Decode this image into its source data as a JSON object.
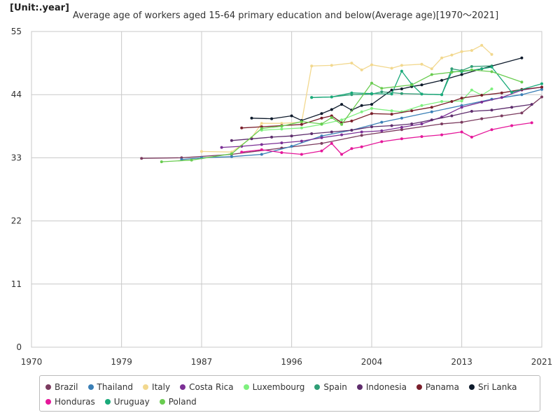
{
  "header": {
    "unit": "[Unit:.year]",
    "title": "Average age of workers aged 15-64 primary education and below(Average age)[1970～2021]"
  },
  "chart_data": {
    "type": "line",
    "title": "Average age of workers aged 15-64 primary education and below(Average age)[1970～2021]",
    "ylabel": "[Unit:.year]",
    "xlim": [
      1970,
      2021
    ],
    "ylim": [
      0,
      55
    ],
    "x_ticks": [
      "1970",
      "1979",
      "1987",
      "1996",
      "2004",
      "2013",
      "2021"
    ],
    "y_ticks": [
      "0",
      "11",
      "22",
      "33",
      "44",
      "55"
    ],
    "grid": true,
    "legend_position": "bottom",
    "series": [
      {
        "name": "Brazil",
        "color": "#7b3b5f",
        "points": [
          [
            1981,
            32.9
          ],
          [
            1985,
            33.0
          ],
          [
            1990,
            33.6
          ],
          [
            1995,
            34.7
          ],
          [
            1999,
            35.5
          ],
          [
            2003,
            36.9
          ],
          [
            2007,
            37.9
          ],
          [
            2011,
            38.9
          ],
          [
            2013,
            39.2
          ],
          [
            2015,
            39.8
          ],
          [
            2017,
            40.3
          ],
          [
            2019,
            40.8
          ],
          [
            2021,
            43.6
          ]
        ]
      },
      {
        "name": "Thailand",
        "color": "#3a7fb6",
        "points": [
          [
            1985,
            32.7
          ],
          [
            1987,
            33.0
          ],
          [
            1990,
            33.2
          ],
          [
            1993,
            33.6
          ],
          [
            1996,
            35.0
          ],
          [
            1999,
            36.8
          ],
          [
            2002,
            37.8
          ],
          [
            2005,
            39.2
          ],
          [
            2007,
            39.9
          ],
          [
            2010,
            41.0
          ],
          [
            2013,
            42.1
          ],
          [
            2016,
            43.2
          ],
          [
            2019,
            44.0
          ],
          [
            2021,
            44.9
          ]
        ]
      },
      {
        "name": "Italy",
        "color": "#f2d88e",
        "points": [
          [
            1987,
            34.1
          ],
          [
            1990,
            34.0
          ],
          [
            1992,
            36.5
          ],
          [
            1993,
            39.0
          ],
          [
            1995,
            39.0
          ],
          [
            1997,
            39.2
          ],
          [
            1998,
            49.0
          ],
          [
            2000,
            49.1
          ],
          [
            2002,
            49.5
          ],
          [
            2003,
            48.3
          ],
          [
            2004,
            49.2
          ],
          [
            2006,
            48.6
          ],
          [
            2007,
            49.1
          ],
          [
            2009,
            49.3
          ],
          [
            2010,
            48.5
          ],
          [
            2011,
            50.4
          ],
          [
            2012,
            50.9
          ],
          [
            2013,
            51.5
          ],
          [
            2014,
            51.7
          ],
          [
            2015,
            52.6
          ],
          [
            2016,
            51.0
          ]
        ]
      },
      {
        "name": "Costa Rica",
        "color": "#7b2f95",
        "points": [
          [
            1989,
            34.8
          ],
          [
            1991,
            35.0
          ],
          [
            1993,
            35.3
          ],
          [
            1995,
            35.6
          ],
          [
            1997,
            35.9
          ],
          [
            1999,
            36.5
          ],
          [
            2001,
            37.0
          ],
          [
            2003,
            37.5
          ],
          [
            2005,
            37.7
          ],
          [
            2007,
            38.3
          ],
          [
            2009,
            38.9
          ],
          [
            2011,
            40.1
          ],
          [
            2013,
            41.8
          ],
          [
            2015,
            42.7
          ],
          [
            2017,
            43.5
          ],
          [
            2019,
            44.8
          ],
          [
            2021,
            45.3
          ]
        ]
      },
      {
        "name": "Luxembourg",
        "color": "#7ef07e",
        "points": [
          [
            1993,
            37.8
          ],
          [
            1995,
            38.0
          ],
          [
            1997,
            38.2
          ],
          [
            1999,
            38.8
          ],
          [
            2001,
            39.6
          ],
          [
            2003,
            41.0
          ],
          [
            2004,
            41.6
          ],
          [
            2006,
            41.2
          ],
          [
            2007,
            41.0
          ],
          [
            2009,
            42.1
          ],
          [
            2011,
            42.8
          ],
          [
            2013,
            42.9
          ],
          [
            2014,
            44.8
          ],
          [
            2015,
            43.9
          ],
          [
            2016,
            45.0
          ]
        ]
      },
      {
        "name": "Spain",
        "color": "#2f9e76",
        "points": [
          [
            1998,
            43.5
          ],
          [
            2000,
            43.6
          ],
          [
            2002,
            44.0
          ],
          [
            2004,
            44.1
          ],
          [
            2005,
            44.5
          ],
          [
            2007,
            44.2
          ],
          [
            2009,
            44.1
          ],
          [
            2011,
            44.0
          ],
          [
            2012,
            48.5
          ],
          [
            2013,
            48.2
          ],
          [
            2014,
            48.9
          ],
          [
            2016,
            49.0
          ]
        ]
      },
      {
        "name": "Indonesia",
        "color": "#5e2d6d",
        "points": [
          [
            1990,
            36.0
          ],
          [
            1992,
            36.3
          ],
          [
            1994,
            36.6
          ],
          [
            1996,
            36.8
          ],
          [
            1998,
            37.2
          ],
          [
            2000,
            37.5
          ],
          [
            2002,
            37.8
          ],
          [
            2004,
            38.4
          ],
          [
            2006,
            38.6
          ],
          [
            2008,
            38.9
          ],
          [
            2010,
            39.6
          ],
          [
            2012,
            40.3
          ],
          [
            2014,
            41.1
          ],
          [
            2016,
            41.3
          ],
          [
            2018,
            41.8
          ],
          [
            2020,
            42.3
          ]
        ]
      },
      {
        "name": "Panama",
        "color": "#7a1f2b",
        "points": [
          [
            1991,
            38.2
          ],
          [
            1993,
            38.4
          ],
          [
            1995,
            38.6
          ],
          [
            1997,
            38.8
          ],
          [
            1999,
            39.9
          ],
          [
            2000,
            40.3
          ],
          [
            2001,
            39.1
          ],
          [
            2002,
            39.4
          ],
          [
            2004,
            40.7
          ],
          [
            2006,
            40.6
          ],
          [
            2008,
            41.2
          ],
          [
            2010,
            41.8
          ],
          [
            2012,
            42.8
          ],
          [
            2013,
            43.4
          ],
          [
            2015,
            43.9
          ],
          [
            2017,
            44.3
          ],
          [
            2019,
            44.9
          ],
          [
            2021,
            45.3
          ]
        ]
      },
      {
        "name": "Sri Lanka",
        "color": "#0d1a2b",
        "points": [
          [
            1992,
            39.9
          ],
          [
            1994,
            39.8
          ],
          [
            1996,
            40.3
          ],
          [
            1997,
            39.5
          ],
          [
            1999,
            40.7
          ],
          [
            2000,
            41.4
          ],
          [
            2001,
            42.3
          ],
          [
            2002,
            41.3
          ],
          [
            2003,
            42.1
          ],
          [
            2004,
            42.3
          ],
          [
            2006,
            44.8
          ],
          [
            2007,
            45.0
          ],
          [
            2008,
            45.4
          ],
          [
            2009,
            45.7
          ],
          [
            2011,
            46.5
          ],
          [
            2013,
            47.5
          ],
          [
            2015,
            48.5
          ],
          [
            2019,
            50.4
          ]
        ]
      },
      {
        "name": "Honduras",
        "color": "#e5179a",
        "points": [
          [
            1991,
            34.0
          ],
          [
            1993,
            34.4
          ],
          [
            1995,
            33.9
          ],
          [
            1997,
            33.6
          ],
          [
            1999,
            34.2
          ],
          [
            2000,
            35.5
          ],
          [
            2001,
            33.6
          ],
          [
            2002,
            34.6
          ],
          [
            2003,
            34.9
          ],
          [
            2005,
            35.8
          ],
          [
            2007,
            36.3
          ],
          [
            2009,
            36.7
          ],
          [
            2011,
            37.0
          ],
          [
            2013,
            37.5
          ],
          [
            2014,
            36.6
          ],
          [
            2016,
            37.9
          ],
          [
            2018,
            38.6
          ],
          [
            2020,
            39.1
          ]
        ]
      },
      {
        "name": "Uruguay",
        "color": "#1aaa7a",
        "points": [
          [
            1998,
            43.5
          ],
          [
            2000,
            43.6
          ],
          [
            2002,
            44.3
          ],
          [
            2004,
            44.2
          ],
          [
            2006,
            44.1
          ],
          [
            2007,
            48.1
          ],
          [
            2008,
            45.8
          ],
          [
            2009,
            44.1
          ],
          [
            2011,
            44.0
          ],
          [
            2012,
            48.0
          ],
          [
            2013,
            48.0
          ],
          [
            2015,
            48.5
          ],
          [
            2016,
            48.8
          ],
          [
            2018,
            44.4
          ],
          [
            2021,
            45.9
          ]
        ]
      },
      {
        "name": "Poland",
        "color": "#69cc50",
        "points": [
          [
            1983,
            32.3
          ],
          [
            1986,
            32.6
          ],
          [
            1990,
            33.7
          ],
          [
            1993,
            38.1
          ],
          [
            1995,
            38.5
          ],
          [
            1997,
            39.3
          ],
          [
            1999,
            38.9
          ],
          [
            2000,
            40.0
          ],
          [
            2001,
            38.8
          ],
          [
            2004,
            46.0
          ],
          [
            2005,
            45.1
          ],
          [
            2008,
            45.7
          ],
          [
            2010,
            47.5
          ],
          [
            2012,
            47.9
          ],
          [
            2014,
            48.3
          ],
          [
            2016,
            48.0
          ],
          [
            2019,
            46.2
          ]
        ]
      }
    ]
  }
}
